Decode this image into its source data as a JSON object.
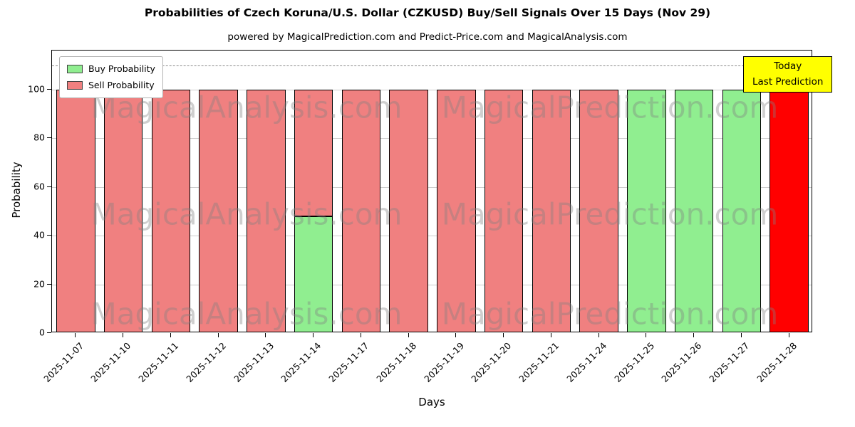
{
  "title": "Probabilities of Czech Koruna/U.S. Dollar (CZKUSD) Buy/Sell Signals Over 15 Days (Nov 29)",
  "subtitle": "powered by MagicalPrediction.com and Predict-Price.com and MagicalAnalysis.com",
  "annotation": {
    "line1": "Today",
    "line2": "Last Prediction",
    "bg": "#ffff00"
  },
  "watermarks": [
    "MagicalAnalysis.com",
    "MagicalPrediction.com"
  ],
  "chart_data": {
    "type": "bar",
    "stacked": true,
    "title": "Probabilities of Czech Koruna/U.S. Dollar (CZKUSD) Buy/Sell Signals Over 15 Days (Nov 29)",
    "xlabel": "Days",
    "ylabel": "Probability",
    "ylim": [
      0,
      116
    ],
    "yticks": [
      0,
      20,
      40,
      60,
      80,
      100
    ],
    "dashed_line_y": 110,
    "grid": true,
    "legend_position": "upper left",
    "categories": [
      "2025-11-07",
      "2025-11-10",
      "2025-11-11",
      "2025-11-12",
      "2025-11-13",
      "2025-11-14",
      "2025-11-17",
      "2025-11-18",
      "2025-11-19",
      "2025-11-20",
      "2025-11-21",
      "2025-11-24",
      "2025-11-25",
      "2025-11-26",
      "2025-11-27",
      "2025-11-28"
    ],
    "series": [
      {
        "name": "Buy Probability",
        "key": "buy",
        "color": "#90ee90",
        "values": [
          0,
          0,
          0,
          0,
          0,
          48,
          0,
          0,
          0,
          0,
          0,
          0,
          100,
          100,
          100,
          0
        ]
      },
      {
        "name": "Sell Probability",
        "key": "sell",
        "color": "#f08080",
        "values": [
          100,
          100,
          100,
          100,
          100,
          52,
          100,
          100,
          100,
          100,
          100,
          100,
          0,
          0,
          0,
          0
        ]
      },
      {
        "name": "Today Last Prediction",
        "key": "today",
        "color": "#ff0000",
        "values": [
          0,
          0,
          0,
          0,
          0,
          0,
          0,
          0,
          0,
          0,
          0,
          0,
          0,
          0,
          0,
          100
        ]
      }
    ]
  }
}
